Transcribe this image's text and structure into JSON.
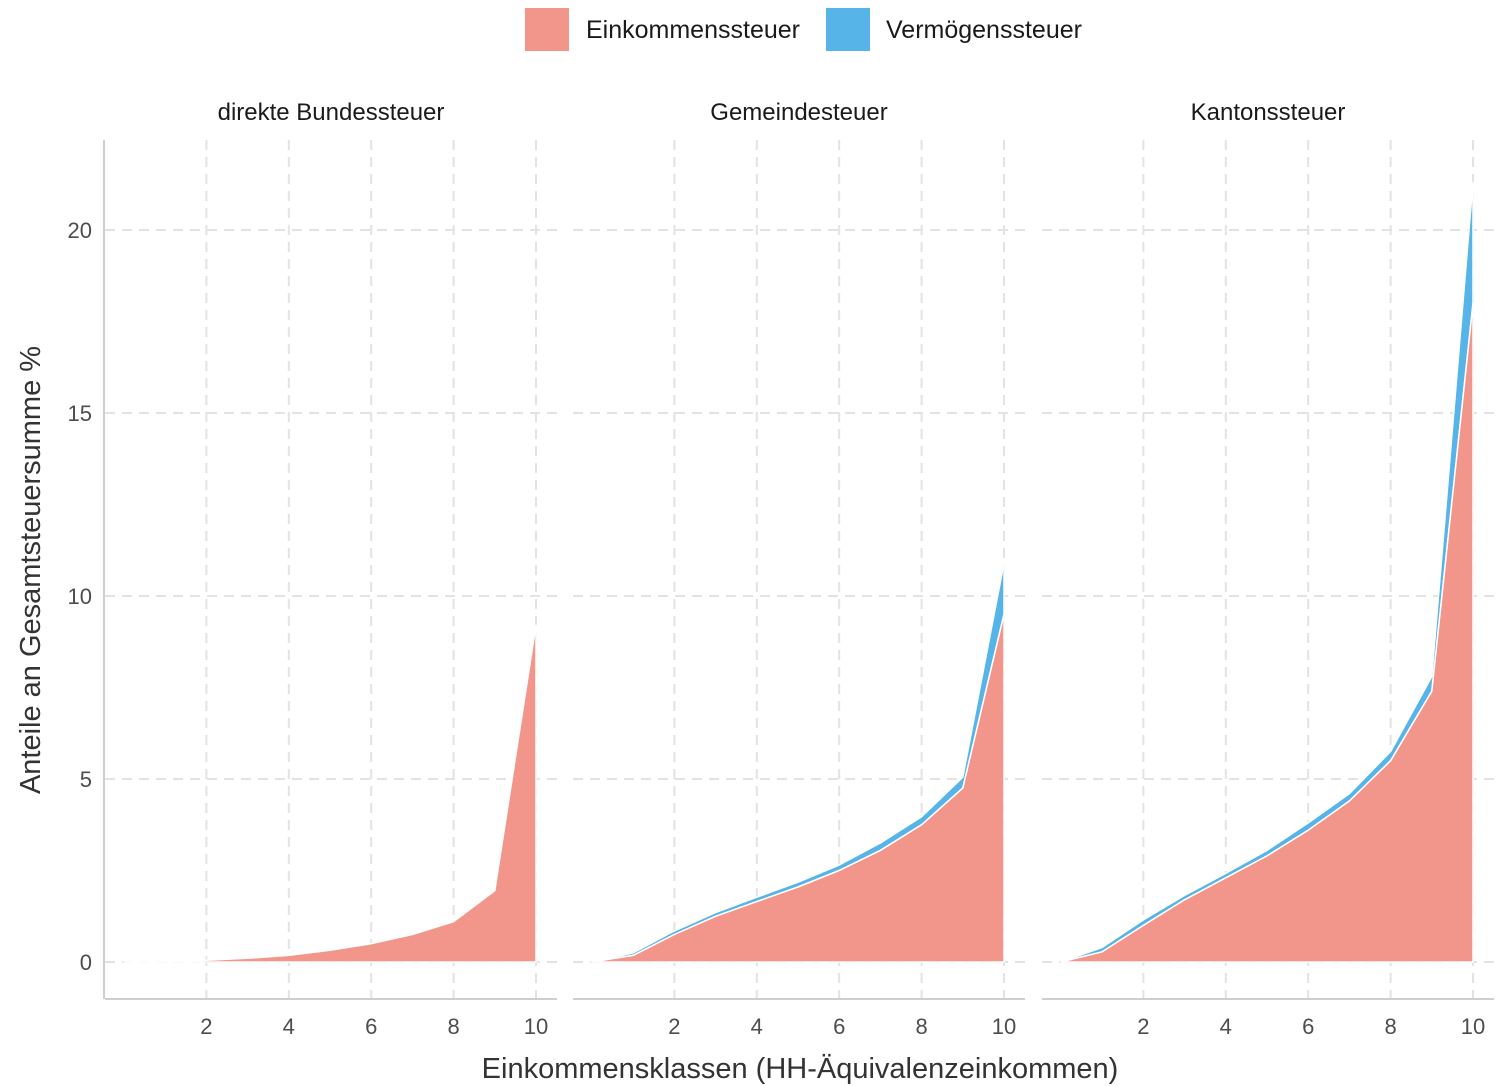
{
  "chart_data": {
    "type": "area",
    "stacked": true,
    "xlabel": "Einkommensklassen (HH-Äquivalenzeinkommen)",
    "ylabel": "Anteile an Gesamtsteuersumme %",
    "xlim": [
      0,
      10
    ],
    "ylim": [
      -1,
      22
    ],
    "x_ticks": [
      2,
      4,
      6,
      8,
      10
    ],
    "y_ticks": [
      0,
      5,
      10,
      15,
      20
    ],
    "grid": true,
    "legend_position": "top",
    "legend": [
      {
        "name": "Einkommenssteuer",
        "color": "#F2958A"
      },
      {
        "name": "Vermögenssteuer",
        "color": "#56B4E9"
      }
    ],
    "x": [
      0,
      1,
      2,
      3,
      4,
      5,
      6,
      7,
      8,
      9,
      10
    ],
    "panels": [
      {
        "title": "direkte Bundessteuer",
        "series": [
          {
            "name": "Einkommenssteuer",
            "values": [
              0,
              0,
              0.05,
              0.1,
              0.18,
              0.32,
              0.5,
              0.75,
              1.1,
              1.95,
              9.2
            ]
          },
          {
            "name": "Vermögenssteuer",
            "values": [
              0,
              0,
              0,
              0,
              0,
              0,
              0,
              0,
              0,
              0,
              0
            ]
          }
        ]
      },
      {
        "title": "Gemeindesteuer",
        "series": [
          {
            "name": "Einkommenssteuer",
            "values": [
              0,
              0.18,
              0.75,
              1.25,
              1.65,
              2.05,
              2.5,
              3.05,
              3.75,
              4.75,
              9.5
            ]
          },
          {
            "name": "Vermögenssteuer",
            "values": [
              0,
              0.07,
              0.1,
              0.1,
              0.12,
              0.13,
              0.15,
              0.2,
              0.22,
              0.3,
              1.4
            ]
          }
        ]
      },
      {
        "title": "Kantonssteuer",
        "series": [
          {
            "name": "Einkommenssteuer",
            "values": [
              0,
              0.28,
              1.0,
              1.7,
              2.3,
              2.9,
              3.6,
              4.4,
              5.5,
              7.4,
              18.0
            ]
          },
          {
            "name": "Vermögenssteuer",
            "values": [
              0,
              0.12,
              0.15,
              0.12,
              0.12,
              0.15,
              0.2,
              0.2,
              0.25,
              0.4,
              3.3
            ]
          }
        ]
      }
    ]
  }
}
